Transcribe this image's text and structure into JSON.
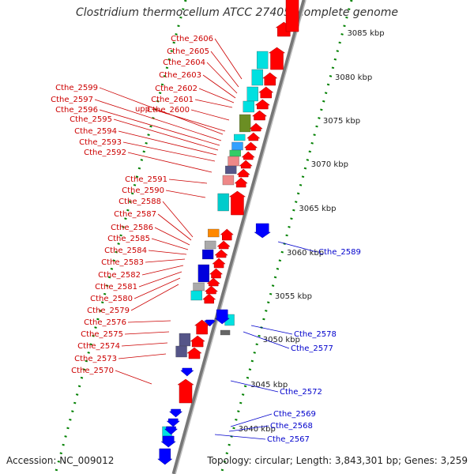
{
  "title": "Clostridium thermocellum ATCC 27405, complete genome",
  "accession": "Accession: NC_009012",
  "topology_info": "Topology: circular; Length: 3,843,301 bp; Genes: 3,259",
  "colors": {
    "forward": "#ff0000",
    "reverse": "#0000ff",
    "backbone": "#888888",
    "ruler": "#008000",
    "label_forward": "#cc0000",
    "label_reverse": "#0000cc"
  },
  "ticks": [
    "3085 kbp",
    "3080 kbp",
    "3075 kbp",
    "3070 kbp",
    "3065 kbp",
    "3060 kbp",
    "3055 kbp",
    "3050 kbp",
    "3045 kbp",
    "3040 kbp"
  ],
  "forward_labels": [
    "Cthe_2606",
    "Cthe_2605",
    "Cthe_2604",
    "Cthe_2603",
    "Cthe_2602",
    "Cthe_2601",
    "upp",
    "Cthe_2600",
    "Cthe_2599",
    "Cthe_2597",
    "Cthe_2596",
    "Cthe_2595",
    "Cthe_2594",
    "Cthe_2593",
    "Cthe_2592",
    "Cthe_2591",
    "Cthe_2590",
    "Cthe_2588",
    "Cthe_2587",
    "Cthe_2586",
    "Cthe_2585",
    "Cthe_2584",
    "Cthe_2583",
    "Cthe_2582",
    "Cthe_2581",
    "Cthe_2580",
    "Cthe_2579",
    "Cthe_2576",
    "Cthe_2575",
    "Cthe_2574",
    "Cthe_2573",
    "Cthe_2570"
  ],
  "reverse_labels": [
    "Cthe_2589",
    "Cthe_2578",
    "Cthe_2577",
    "Cthe_2572",
    "Cthe_2569",
    "Cthe_2568",
    "Cthe_2567"
  ]
}
